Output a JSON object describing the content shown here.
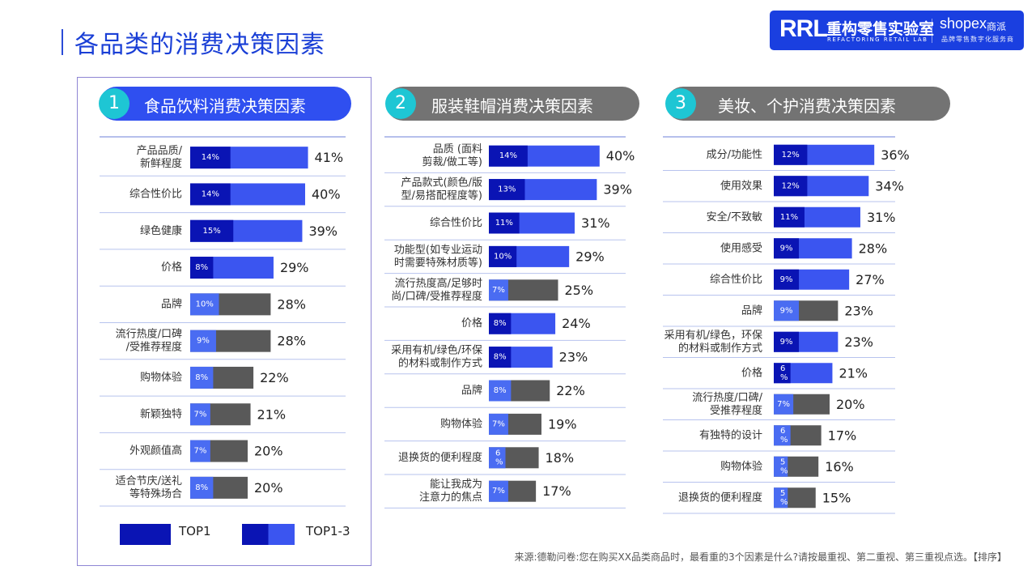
{
  "page": {
    "title": "各品类的消费决策因素",
    "source": "来源:德勒问卷:您在购买XX品类商品时，最看重的3个因素是什么?请按最重视、第二重视、第三重视点选。【排序】"
  },
  "logo": {
    "rrl": "RRL",
    "cn": "重构零售实验室",
    "en": "REFACTORING RETAIL LAB",
    "shopex": "shopex",
    "shopex_cn": "商派",
    "shopex_sub": "品牌零售数字化服务商"
  },
  "colors": {
    "top1": "#0a14b4",
    "top13": "#3b55f0",
    "top13_light": "#4a6cf2",
    "grey": "#595959",
    "header_blue": "#2f4ff0",
    "header_grey": "#737373",
    "circle": "#1ec6d4"
  },
  "legend": {
    "top1": "TOP1",
    "top13": "TOP1-3"
  },
  "sections": [
    {
      "num": "1",
      "title": "食品饮料消费决策因素"
    },
    {
      "num": "2",
      "title": "服装鞋帽消费决策因素"
    },
    {
      "num": "3",
      "title": "美妆、个护消费决策因素"
    }
  ],
  "chart_data": [
    {
      "type": "bar",
      "title": "食品饮料消费决策因素",
      "orientation": "horizontal",
      "series_names": [
        "TOP1",
        "TOP1-3"
      ],
      "categories": [
        "产品品质/\n新鲜程度",
        "综合性价比",
        "绿色健康",
        "价格",
        "品牌",
        "流行热度/口碑\n/受推荐程度",
        "购物体验",
        "新颖独特",
        "外观颜值高",
        "适合节庆/送礼\n等特殊场合"
      ],
      "top1": [
        14,
        14,
        15,
        8,
        10,
        9,
        8,
        7,
        7,
        8
      ],
      "top13": [
        41,
        40,
        39,
        29,
        28,
        28,
        22,
        21,
        20,
        20
      ],
      "top1_labels": [
        "14%",
        "14%",
        "15%",
        "8%",
        "10%",
        "9%",
        "8%",
        "7%",
        "7%",
        "8%"
      ],
      "top13_labels": [
        "41%",
        "40%",
        "39%",
        "29%",
        "28%",
        "28%",
        "22%",
        "21%",
        "20%",
        "20%"
      ]
    },
    {
      "type": "bar",
      "title": "服装鞋帽消费决策因素",
      "orientation": "horizontal",
      "series_names": [
        "TOP1",
        "TOP1-3"
      ],
      "categories": [
        "品质 (面料\n剪裁/做工等)",
        "产品款式(颜色/版\n型/易搭配程度等)",
        "综合性价比",
        "功能型(如专业运动\n时需要特殊材质等)",
        "流行热度高/足够时\n尚/口碑/受推荐程度",
        "价格",
        "采用有机/绿色/环保\n的材料或制作方式",
        "品牌",
        "购物体验",
        "退换货的便利程度",
        "能让我成为\n注意力的焦点"
      ],
      "top1": [
        14,
        13,
        11,
        10,
        7,
        8,
        8,
        8,
        7,
        6,
        7
      ],
      "top13": [
        40,
        39,
        31,
        29,
        25,
        24,
        23,
        22,
        19,
        18,
        17
      ],
      "top1_labels": [
        "14%",
        "13%",
        "11%",
        "10%",
        "7%",
        "8%",
        "8%",
        "8%",
        "7%",
        "6\n%",
        "7%"
      ],
      "top13_labels": [
        "40%",
        "39%",
        "31%",
        "29%",
        "25%",
        "24%",
        "23%",
        "22%",
        "19%",
        "18%",
        "17%"
      ]
    },
    {
      "type": "bar",
      "title": "美妆、个护消费决策因素",
      "orientation": "horizontal",
      "series_names": [
        "TOP1",
        "TOP1-3"
      ],
      "categories": [
        "成分/功能性",
        "使用效果",
        "安全/不致敏",
        "使用感受",
        "综合性价比",
        "品牌",
        "采用有机/绿色，环保\n的材料或制作方式",
        "价格",
        "流行热度/口碑/\n受推荐程度",
        "有独特的设计",
        "购物体验",
        "退换货的便利程度"
      ],
      "top1": [
        12,
        12,
        11,
        9,
        9,
        9,
        9,
        6,
        7,
        6,
        5,
        5
      ],
      "top13": [
        36,
        34,
        31,
        28,
        27,
        23,
        23,
        21,
        20,
        17,
        16,
        15
      ],
      "top1_labels": [
        "12%",
        "12%",
        "11%",
        "9%",
        "9%",
        "9%",
        "9%",
        "6\n%",
        "7%",
        "6\n%",
        "5\n%",
        "5\n%"
      ],
      "top13_labels": [
        "36%",
        "34%",
        "31%",
        "28%",
        "27%",
        "23%",
        "23%",
        "21%",
        "20%",
        "17%",
        "16%",
        "15%"
      ]
    }
  ]
}
